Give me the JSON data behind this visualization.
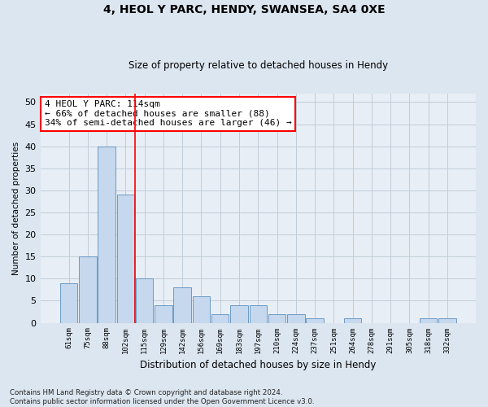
{
  "title1": "4, HEOL Y PARC, HENDY, SWANSEA, SA4 0XE",
  "title2": "Size of property relative to detached houses in Hendy",
  "xlabel": "Distribution of detached houses by size in Hendy",
  "ylabel": "Number of detached properties",
  "categories": [
    "61sqm",
    "75sqm",
    "88sqm",
    "102sqm",
    "115sqm",
    "129sqm",
    "142sqm",
    "156sqm",
    "169sqm",
    "183sqm",
    "197sqm",
    "210sqm",
    "224sqm",
    "237sqm",
    "251sqm",
    "264sqm",
    "278sqm",
    "291sqm",
    "305sqm",
    "318sqm",
    "332sqm"
  ],
  "values": [
    9,
    15,
    40,
    29,
    10,
    4,
    8,
    6,
    2,
    4,
    4,
    2,
    2,
    1,
    0,
    1,
    0,
    0,
    0,
    1,
    1
  ],
  "bar_color": "#c5d8ed",
  "bar_edgecolor": "#5a8fc0",
  "vline_color": "red",
  "annotation_line1": "4 HEOL Y PARC: 114sqm",
  "annotation_line2": "← 66% of detached houses are smaller (88)",
  "annotation_line3": "34% of semi-detached houses are larger (46) →",
  "annotation_box_color": "white",
  "annotation_box_edgecolor": "red",
  "ylim": [
    0,
    52
  ],
  "yticks": [
    0,
    5,
    10,
    15,
    20,
    25,
    30,
    35,
    40,
    45,
    50
  ],
  "footer": "Contains HM Land Registry data © Crown copyright and database right 2024.\nContains public sector information licensed under the Open Government Licence v3.0.",
  "bg_color": "#dce6f0",
  "plot_bg_color": "#e8eef5",
  "grid_color": "#c0ccd8"
}
